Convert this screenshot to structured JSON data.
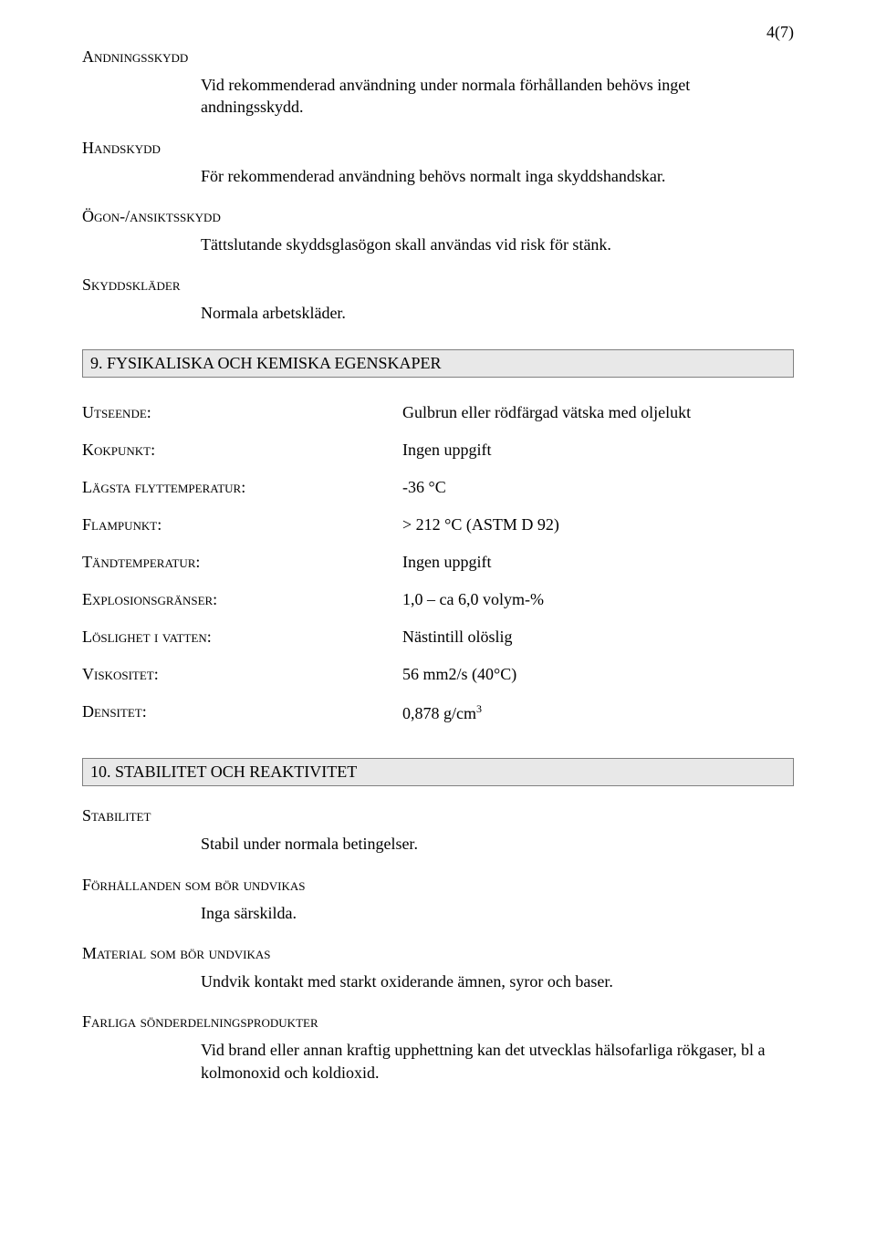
{
  "pageNumber": "4(7)",
  "section8": {
    "heading_andningsskydd": "Andningsskydd",
    "text_andningsskydd": "Vid rekommenderad användning under normala förhållanden behövs inget andningsskydd.",
    "heading_handskydd": "Handskydd",
    "text_handskydd": "För rekommenderad användning behövs normalt inga skyddshandskar.",
    "heading_ogon": "Ögon-/ansiktsskydd",
    "text_ogon": "Tättslutande skyddsglasögon skall användas vid risk för stänk.",
    "heading_skyddsklader": "Skyddskläder",
    "text_skyddsklader": "Normala arbetskläder."
  },
  "section9": {
    "title": "9. FYSIKALISKA OCH KEMISKA EGENSKAPER",
    "rows": [
      {
        "label": "Utseende:",
        "value": "Gulbrun eller rödfärgad vätska med oljelukt"
      },
      {
        "label": "Kokpunkt:",
        "value": "Ingen uppgift"
      },
      {
        "label": "Lägsta flyttemperatur:",
        "value": "-36 °C"
      },
      {
        "label": "Flampunkt:",
        "value": "> 212 °C (ASTM D 92)"
      },
      {
        "label": "Tändtemperatur:",
        "value": "Ingen uppgift"
      },
      {
        "label": "Explosionsgränser:",
        "value": "1,0 – ca 6,0 volym-%"
      },
      {
        "label": "Löslighet i vatten:",
        "value": "Nästintill olöslig"
      },
      {
        "label": "Viskositet:",
        "value": "56 mm2/s (40°C)"
      },
      {
        "label": "Densitet:",
        "value_html": "0,878 g/cm<span class=\"sup\">3</span>",
        "value": "0,878 g/cm3"
      }
    ]
  },
  "section10": {
    "title": "10. STABILITET OCH REAKTIVITET",
    "heading_stabilitet": "Stabilitet",
    "text_stabilitet": "Stabil under normala betingelser.",
    "heading_forhallanden": "Förhållanden som bör undvikas",
    "text_forhallanden": "Inga särskilda.",
    "heading_material": "Material som bör undvikas",
    "text_material": "Undvik kontakt med starkt oxiderande ämnen, syror och baser.",
    "heading_farliga": "Farliga sönderdelningsprodukter",
    "text_farliga": "Vid brand eller annan kraftig upphettning kan det utvecklas hälsofarliga rökgaser, bl a kolmonoxid och koldioxid."
  }
}
